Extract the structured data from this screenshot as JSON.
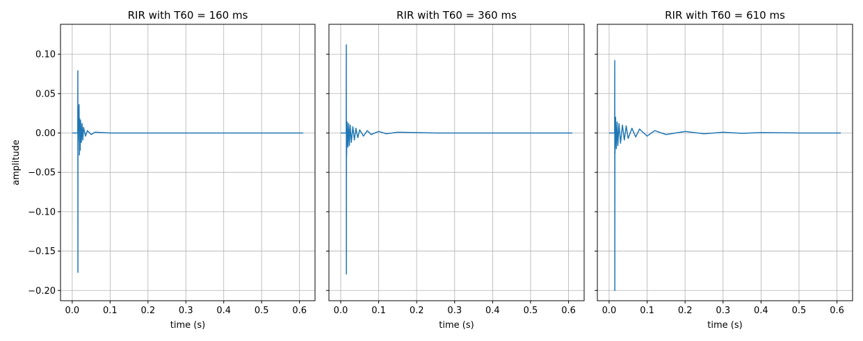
{
  "chart_data": [
    {
      "type": "line",
      "title": "RIR with T60 = 160 ms",
      "xlabel": "time (s)",
      "ylabel": "amplitude",
      "xlim": [
        -0.031,
        0.641
      ],
      "ylim": [
        -0.213,
        0.138
      ],
      "xticks": [
        0.0,
        0.1,
        0.2,
        0.3,
        0.4,
        0.5,
        0.6
      ],
      "xtick_labels": [
        "0.0",
        "0.1",
        "0.2",
        "0.3",
        "0.4",
        "0.5",
        "0.6"
      ],
      "yticks": [
        -0.2,
        -0.15,
        -0.1,
        -0.05,
        0.0,
        0.05,
        0.1
      ],
      "ytick_labels": [
        "−0.20",
        "−0.15",
        "−0.10",
        "−0.05",
        "0.00",
        "0.05",
        "0.10"
      ],
      "show_yticklabels": true,
      "grid": true,
      "color": "#1f77b4",
      "series": [
        {
          "x": [
            0.0,
            0.01,
            0.0145,
            0.0148,
            0.015,
            0.0152,
            0.0155,
            0.016,
            0.018,
            0.019,
            0.02,
            0.021,
            0.022,
            0.024,
            0.026,
            0.028,
            0.03,
            0.035,
            0.04,
            0.05,
            0.06,
            0.08,
            0.1,
            0.2,
            0.4,
            0.61
          ],
          "y": [
            0.0,
            0.0,
            0.0,
            0.079,
            -0.177,
            0.02,
            -0.01,
            0.01,
            0.036,
            -0.028,
            0.018,
            -0.022,
            0.016,
            -0.012,
            0.012,
            -0.009,
            0.007,
            -0.004,
            0.003,
            -0.002,
            0.001,
            0.0005,
            0.0,
            0.0,
            0.0,
            0.0
          ]
        }
      ]
    },
    {
      "type": "line",
      "title": "RIR with T60 = 360 ms",
      "xlabel": "time (s)",
      "ylabel": "",
      "xlim": [
        -0.031,
        0.641
      ],
      "ylim": [
        -0.213,
        0.138
      ],
      "xticks": [
        0.0,
        0.1,
        0.2,
        0.3,
        0.4,
        0.5,
        0.6
      ],
      "xtick_labels": [
        "0.0",
        "0.1",
        "0.2",
        "0.3",
        "0.4",
        "0.5",
        "0.6"
      ],
      "yticks": [
        -0.2,
        -0.15,
        -0.1,
        -0.05,
        0.0,
        0.05,
        0.1
      ],
      "ytick_labels": [],
      "show_yticklabels": false,
      "grid": true,
      "color": "#1f77b4",
      "series": [
        {
          "x": [
            0.0,
            0.01,
            0.0145,
            0.0148,
            0.015,
            0.0152,
            0.0155,
            0.017,
            0.019,
            0.021,
            0.023,
            0.025,
            0.028,
            0.032,
            0.036,
            0.04,
            0.045,
            0.05,
            0.06,
            0.07,
            0.08,
            0.1,
            0.12,
            0.15,
            0.2,
            0.25,
            0.3,
            0.4,
            0.5,
            0.61
          ],
          "y": [
            0.0,
            0.0,
            0.0,
            0.112,
            -0.179,
            0.01,
            -0.03,
            0.014,
            -0.018,
            0.012,
            -0.016,
            0.01,
            -0.012,
            0.008,
            -0.009,
            0.006,
            -0.006,
            0.004,
            -0.004,
            0.003,
            -0.002,
            0.002,
            -0.001,
            0.001,
            0.0005,
            0.0,
            0.0,
            0.0,
            0.0,
            0.0
          ]
        }
      ]
    },
    {
      "type": "line",
      "title": "RIR with T60 = 610 ms",
      "xlabel": "time (s)",
      "ylabel": "",
      "xlim": [
        -0.031,
        0.641
      ],
      "ylim": [
        -0.213,
        0.138
      ],
      "xticks": [
        0.0,
        0.1,
        0.2,
        0.3,
        0.4,
        0.5,
        0.6
      ],
      "xtick_labels": [
        "0.0",
        "0.1",
        "0.2",
        "0.3",
        "0.4",
        "0.5",
        "0.6"
      ],
      "yticks": [
        -0.2,
        -0.15,
        -0.1,
        -0.05,
        0.0,
        0.05,
        0.1
      ],
      "ytick_labels": [],
      "show_yticklabels": false,
      "grid": true,
      "color": "#1f77b4",
      "series": [
        {
          "x": [
            0.0,
            0.01,
            0.0145,
            0.0148,
            0.015,
            0.0152,
            0.0155,
            0.017,
            0.019,
            0.021,
            0.023,
            0.026,
            0.03,
            0.035,
            0.04,
            0.045,
            0.05,
            0.06,
            0.07,
            0.08,
            0.1,
            0.12,
            0.15,
            0.2,
            0.25,
            0.3,
            0.35,
            0.4,
            0.5,
            0.61
          ],
          "y": [
            0.0,
            0.0,
            0.0,
            0.092,
            -0.2,
            0.01,
            -0.026,
            0.02,
            -0.02,
            0.014,
            -0.016,
            0.012,
            -0.013,
            0.01,
            -0.009,
            0.009,
            -0.007,
            0.006,
            -0.005,
            0.005,
            -0.004,
            0.003,
            -0.002,
            0.002,
            -0.001,
            0.001,
            -0.0005,
            0.0005,
            0.0,
            0.0
          ]
        }
      ]
    }
  ]
}
